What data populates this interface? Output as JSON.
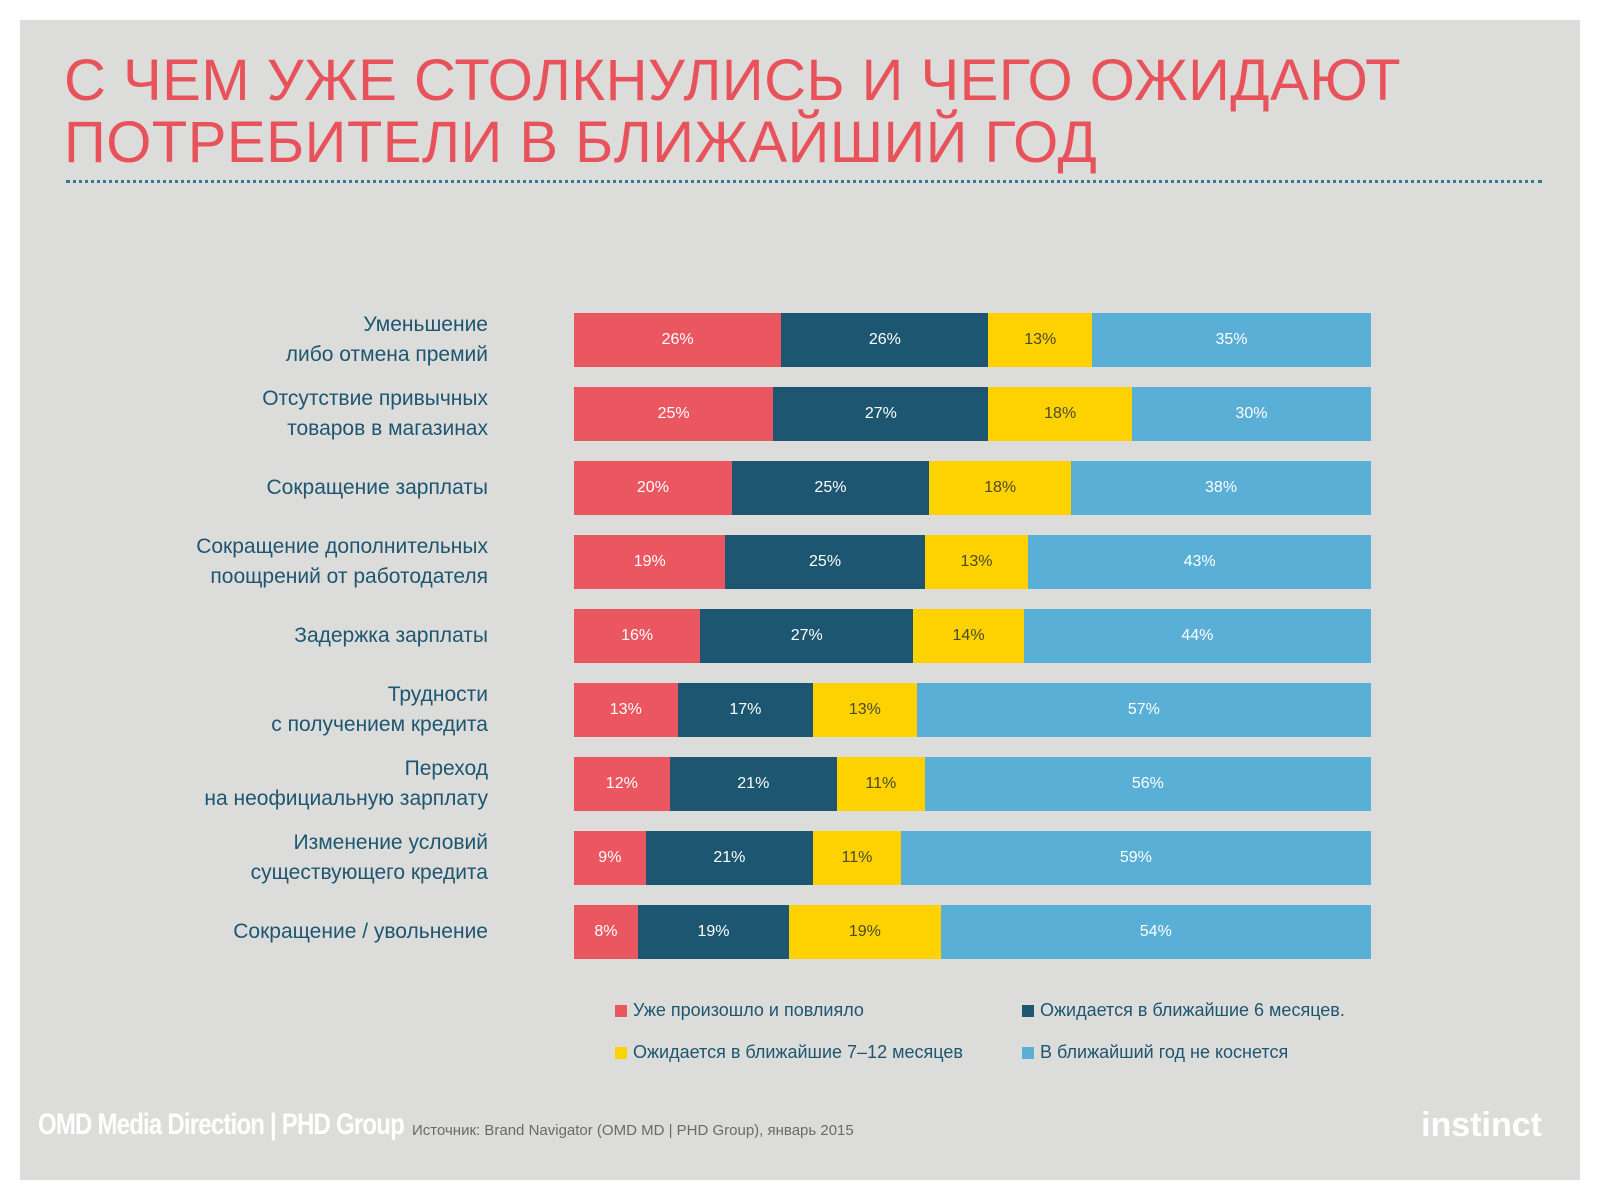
{
  "title": {
    "line1": "С ЧЕМ УЖЕ СТОЛКНУЛИСЬ И ЧЕГО ОЖИДАЮТ",
    "line2": "ПОТРЕБИТЕЛИ В БЛИЖАЙШИЙ ГОД"
  },
  "chart_data": {
    "type": "bar",
    "stacked": true,
    "orientation": "horizontal",
    "categories": [
      [
        "Уменьшение",
        "либо отмена премий"
      ],
      [
        "Отсутствие привычных",
        "товаров в магазинах"
      ],
      [
        "Сокращение зарплаты"
      ],
      [
        "Сокращение дополнительных",
        "поощрений от работодателя"
      ],
      [
        "Задержка зарплаты"
      ],
      [
        "Трудности",
        "с получением кредита"
      ],
      [
        "Переход",
        "на неофициальную зарплату"
      ],
      [
        "Изменение условий",
        "существующего кредита"
      ],
      [
        "Сокращение / увольнение"
      ]
    ],
    "series": [
      {
        "name": "Уже произошло и повлияло",
        "color": "#ea5760",
        "text_color": "#ffffff",
        "values": [
          26,
          25,
          20,
          19,
          16,
          13,
          12,
          9,
          8
        ]
      },
      {
        "name": "Ожидается в ближайшие 6 месяцев.",
        "color": "#1c5670",
        "text_color": "#ffffff",
        "values": [
          26,
          27,
          25,
          25,
          27,
          17,
          21,
          21,
          19
        ]
      },
      {
        "name": "Ожидается в ближайшие 7–12 месяцев",
        "color": "#fed200",
        "text_color": "#4a4a2a",
        "values": [
          13,
          18,
          18,
          13,
          14,
          13,
          11,
          11,
          19
        ]
      },
      {
        "name": "В ближайший год не коснется",
        "color": "#5aafd7",
        "text_color": "#ffffff",
        "values": [
          35,
          30,
          38,
          43,
          44,
          57,
          56,
          59,
          54
        ]
      }
    ],
    "value_suffix": "%",
    "grid": false,
    "legend_position": "bottom"
  },
  "footer": {
    "logo": "OMD Media Direction | PHD Group",
    "source": "Источник: Brand Navigator (OMD MD | PHD Group), январь 2015",
    "brand": "instinct"
  }
}
